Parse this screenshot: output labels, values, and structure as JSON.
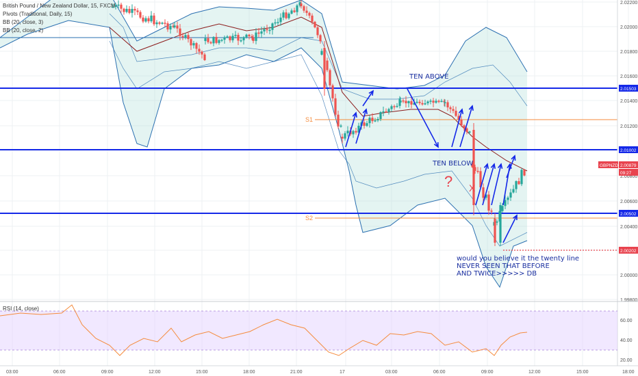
{
  "header": {
    "symbol_title": "British Pound / New Zealand Dollar, 15, FXCM",
    "pivots_label": "Pivots (Traditional, Daily, 15)",
    "bb1_label": "BB (20, close, 3)",
    "bb2_label": "BB (20, close, 2)"
  },
  "price_axis": {
    "ticks": [
      "2.02200",
      "2.02000",
      "2.01800",
      "2.01600",
      "2.01400",
      "2.01200",
      "2.01000",
      "2.00800",
      "2.00600",
      "2.00400",
      "2.00200",
      "2.00000",
      "1.99800"
    ],
    "tags": [
      {
        "text": "2.01503",
        "color": "#1428e8"
      },
      {
        "text": "2.01002",
        "color": "#1428e8"
      },
      {
        "text": "GBPNZD",
        "color": "#e8434e"
      },
      {
        "text": "2.00879",
        "color": "#e8434e"
      },
      {
        "text": "09:27",
        "color": "#e8434e"
      },
      {
        "text": "2.00502",
        "color": "#1428e8"
      },
      {
        "text": "2.00202",
        "color": "#e8434e"
      }
    ]
  },
  "time_axis": {
    "ticks": [
      "03:00",
      "06:00",
      "09:00",
      "12:00",
      "15:00",
      "18:00",
      "21:00",
      "17",
      "03:00",
      "06:00",
      "09:00",
      "12:00",
      "15:00",
      "18:00"
    ]
  },
  "pivots": {
    "s1": "S1",
    "s2": "S2"
  },
  "annotations": {
    "ten_above": "TEN ABOVE",
    "ten_below": "TEN BELOW",
    "question": "?",
    "cross": "X",
    "note_line1": "would you believe it the twenty line",
    "note_line2": "NEVER SEEN THAT BEFORE",
    "note_line3": "AND TWICE>>>>> DB"
  },
  "rsi": {
    "label": "RSI (14, close)",
    "ticks": [
      "60.00",
      "40.00",
      "20.00"
    ]
  },
  "colors": {
    "up": "#26a69a",
    "down": "#ef5350",
    "bb_fill": "#b2dfdb",
    "bb_line": "#2a6fb0",
    "basis": "#8b1a1a",
    "hline": "#1428e8",
    "pivot": "#f58b3c",
    "rsi_line": "#f58b3c",
    "rsi_band": "#e6d5ff"
  }
}
